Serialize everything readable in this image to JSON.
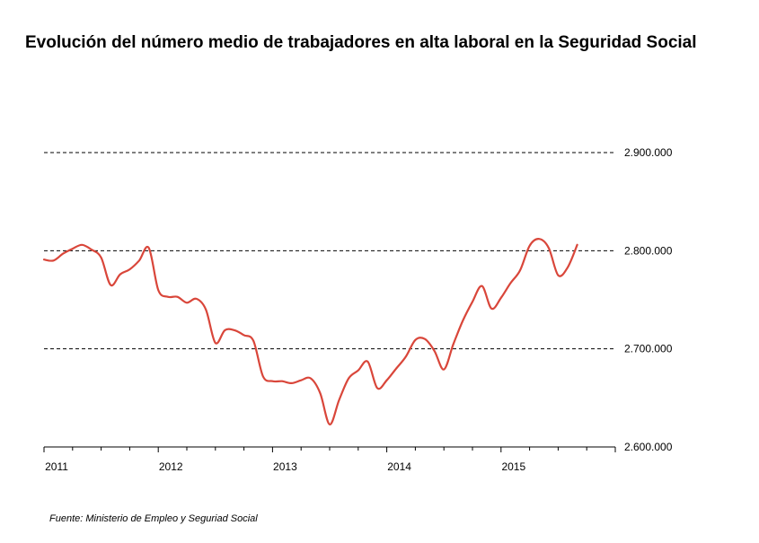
{
  "title": "Evolución del número medio de trabajadores en alta laboral en la Seguridad Social",
  "source": "Fuente: Ministerio de Empleo y Seguriad Social",
  "chart_data": {
    "type": "line",
    "title": "Evolución del número medio de trabajadores en alta laboral en la Seguridad Social",
    "xlabel": "",
    "ylabel": "",
    "xlim": [
      2011.0,
      2016.0
    ],
    "ylim": [
      2600000,
      2900000
    ],
    "x_ticks": [
      2011,
      2012,
      2013,
      2014,
      2015
    ],
    "x_tick_labels": [
      "2011",
      "2012",
      "2013",
      "2014",
      "2015"
    ],
    "y_ticks": [
      2600000,
      2700000,
      2800000,
      2900000
    ],
    "y_tick_labels": [
      "2.600.000",
      "2.700.000",
      "2.800.000",
      "2.900.000"
    ],
    "y_axis_position": "right",
    "grid": "horizontal dashed",
    "line_color": "#d9463a",
    "series": [
      {
        "x": [
          2011.0,
          2011.083,
          2011.167,
          2011.25,
          2011.333,
          2011.417,
          2011.5,
          2011.583,
          2011.667,
          2011.75,
          2011.833,
          2011.917,
          2012.0,
          2012.083,
          2012.167,
          2012.25,
          2012.333,
          2012.417,
          2012.5,
          2012.583,
          2012.667,
          2012.75,
          2012.833,
          2012.917,
          2013.0,
          2013.083,
          2013.167,
          2013.25,
          2013.333,
          2013.417,
          2013.5,
          2013.583,
          2013.667,
          2013.75,
          2013.833,
          2013.917,
          2014.0,
          2014.083,
          2014.167,
          2014.25,
          2014.333,
          2014.417,
          2014.5,
          2014.583,
          2014.667,
          2014.75,
          2014.833,
          2014.917,
          2015.0,
          2015.083,
          2015.167,
          2015.25,
          2015.333,
          2015.417,
          2015.5,
          2015.583,
          2015.667
        ],
        "values": [
          2791000,
          2790000,
          2797000,
          2802000,
          2806000,
          2801000,
          2793000,
          2765000,
          2776000,
          2781000,
          2790000,
          2803000,
          2760000,
          2753000,
          2753000,
          2747000,
          2751000,
          2740000,
          2706000,
          2719000,
          2719000,
          2714000,
          2708000,
          2672000,
          2667000,
          2667000,
          2665000,
          2668000,
          2670000,
          2655000,
          2623000,
          2648000,
          2670000,
          2678000,
          2687000,
          2660000,
          2668000,
          2680000,
          2692000,
          2709000,
          2710000,
          2698000,
          2679000,
          2705000,
          2729000,
          2748000,
          2764000,
          2741000,
          2752000,
          2767000,
          2780000,
          2805000,
          2812000,
          2803000,
          2775000,
          2783000,
          2806000
        ]
      }
    ]
  }
}
